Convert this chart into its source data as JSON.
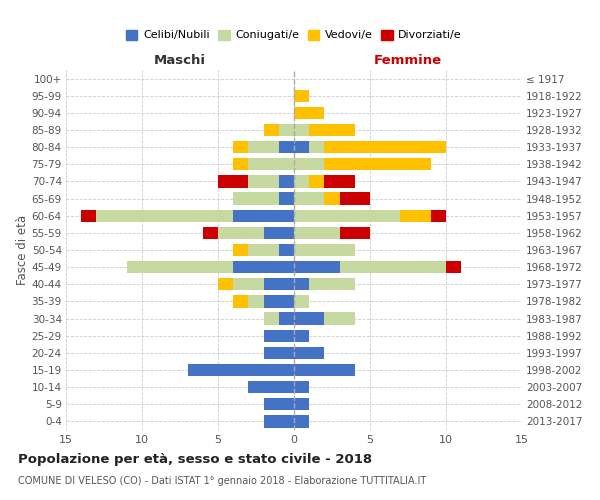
{
  "age_groups": [
    "100+",
    "95-99",
    "90-94",
    "85-89",
    "80-84",
    "75-79",
    "70-74",
    "65-69",
    "60-64",
    "55-59",
    "50-54",
    "45-49",
    "40-44",
    "35-39",
    "30-34",
    "25-29",
    "20-24",
    "15-19",
    "10-14",
    "5-9",
    "0-4"
  ],
  "birth_years": [
    "≤ 1917",
    "1918-1922",
    "1923-1927",
    "1928-1932",
    "1933-1937",
    "1938-1942",
    "1943-1947",
    "1948-1952",
    "1953-1957",
    "1958-1962",
    "1963-1967",
    "1968-1972",
    "1973-1977",
    "1978-1982",
    "1983-1987",
    "1988-1992",
    "1993-1997",
    "1998-2002",
    "2003-2007",
    "2008-2012",
    "2013-2017"
  ],
  "male": {
    "celibi": [
      0,
      0,
      0,
      0,
      1,
      0,
      1,
      1,
      4,
      2,
      1,
      4,
      2,
      2,
      1,
      2,
      2,
      7,
      3,
      2,
      2
    ],
    "coniugati": [
      0,
      0,
      0,
      1,
      2,
      3,
      2,
      3,
      9,
      3,
      2,
      7,
      2,
      1,
      1,
      0,
      0,
      0,
      0,
      0,
      0
    ],
    "vedovi": [
      0,
      0,
      0,
      1,
      1,
      1,
      0,
      0,
      0,
      0,
      1,
      0,
      1,
      1,
      0,
      0,
      0,
      0,
      0,
      0,
      0
    ],
    "divorziati": [
      0,
      0,
      0,
      0,
      0,
      0,
      2,
      0,
      1,
      1,
      0,
      0,
      0,
      0,
      0,
      0,
      0,
      0,
      0,
      0,
      0
    ]
  },
  "female": {
    "celibi": [
      0,
      0,
      0,
      0,
      1,
      0,
      0,
      0,
      0,
      0,
      0,
      3,
      1,
      0,
      2,
      1,
      2,
      4,
      1,
      1,
      1
    ],
    "coniugati": [
      0,
      0,
      0,
      1,
      1,
      2,
      1,
      2,
      7,
      3,
      4,
      7,
      3,
      1,
      2,
      0,
      0,
      0,
      0,
      0,
      0
    ],
    "vedovi": [
      0,
      1,
      2,
      3,
      8,
      7,
      1,
      1,
      2,
      0,
      0,
      0,
      0,
      0,
      0,
      0,
      0,
      0,
      0,
      0,
      0
    ],
    "divorziati": [
      0,
      0,
      0,
      0,
      0,
      0,
      2,
      2,
      1,
      2,
      0,
      1,
      0,
      0,
      0,
      0,
      0,
      0,
      0,
      0,
      0
    ]
  },
  "colors": {
    "celibi": "#4472c4",
    "coniugati": "#c5d9a0",
    "vedovi": "#ffc000",
    "divorziati": "#cc0000"
  },
  "xlim": 15,
  "title": "Popolazione per età, sesso e stato civile - 2018",
  "subtitle": "COMUNE DI VELESO (CO) - Dati ISTAT 1° gennaio 2018 - Elaborazione TUTTITALIA.IT",
  "xlabel_left": "Maschi",
  "xlabel_right": "Femmine",
  "ylabel_left": "Fasce di età"
}
